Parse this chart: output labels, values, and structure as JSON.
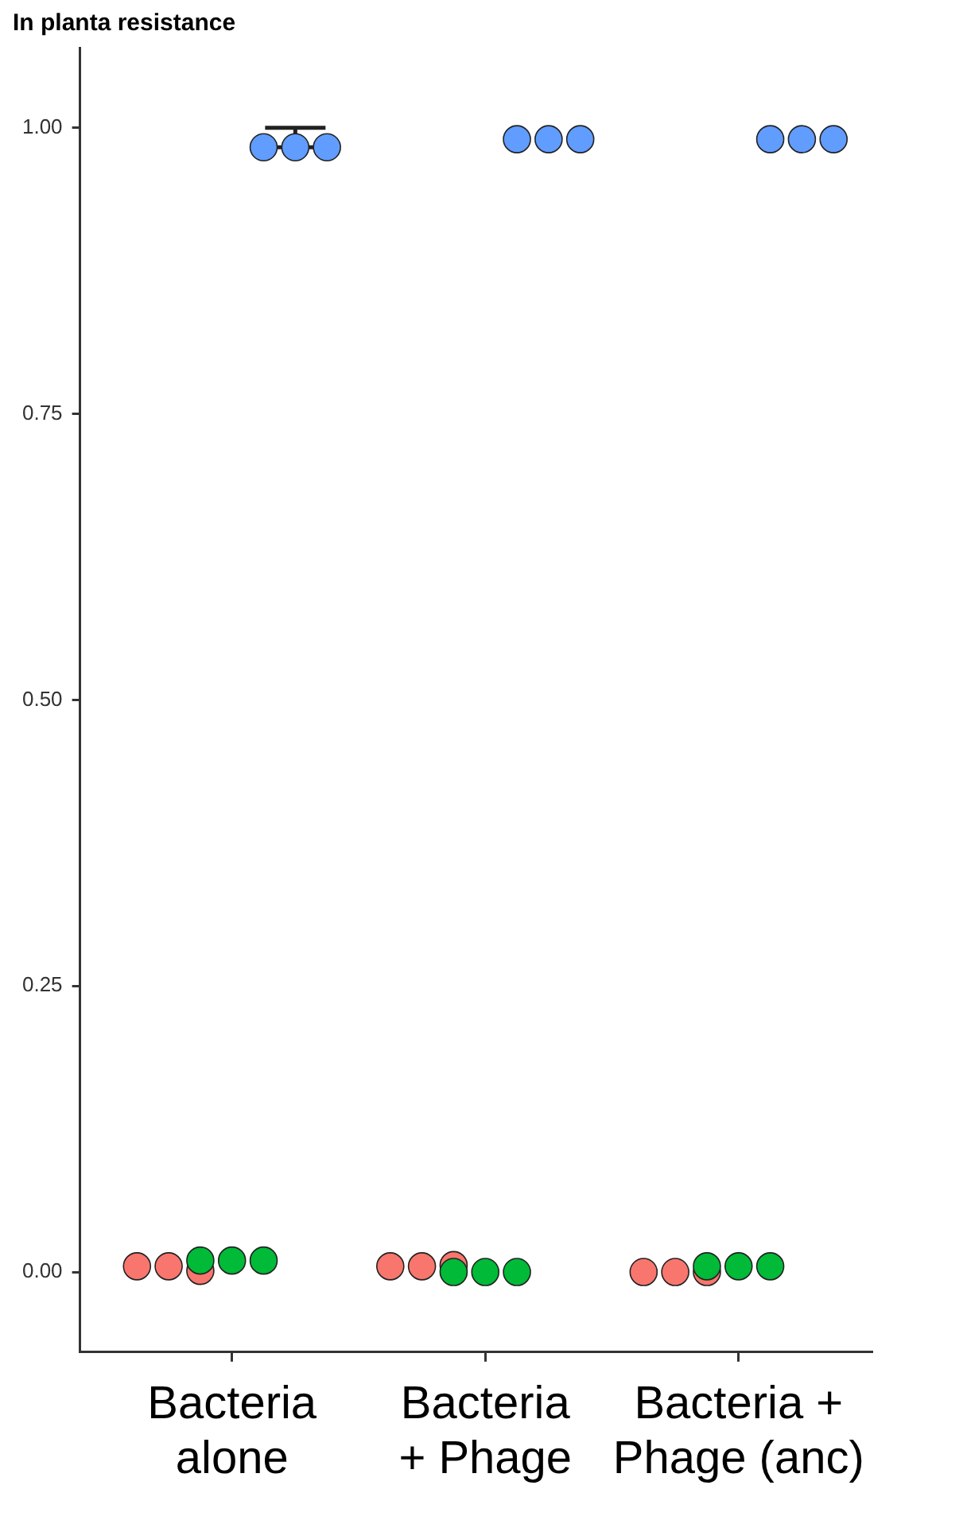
{
  "chart_data": {
    "type": "scatter",
    "title": "In planta resistance",
    "categories": [
      null,
      null,
      null,
      "Bacteria\nalone",
      null,
      null,
      null,
      null,
      null,
      null,
      null,
      "Bacteria\n+ Phage",
      null,
      null,
      null,
      null,
      null,
      null,
      null,
      "Bacteria +\nPhage (anc)",
      null,
      null,
      null,
      null
    ],
    "series": [
      {
        "color": "#f8766d",
        "values": [
          0.005,
          0.005,
          0.001,
          null,
          null,
          null,
          null,
          null,
          0.005,
          0.005,
          0.006,
          null,
          null,
          null,
          null,
          null,
          0.0,
          0.0,
          0.0,
          null,
          null,
          null,
          null,
          null
        ]
      },
      {
        "color": "#00ba38",
        "values": [
          null,
          null,
          0.01,
          0.01,
          0.01,
          null,
          null,
          null,
          null,
          null,
          0.0,
          0.0,
          0.0,
          null,
          null,
          null,
          null,
          null,
          0.005,
          0.005,
          0.005,
          null,
          null,
          null
        ]
      },
      {
        "color": "#619cff",
        "values": [
          null,
          null,
          null,
          null,
          0.983,
          0.983,
          0.983,
          null,
          null,
          null,
          null,
          null,
          0.99,
          0.99,
          0.99,
          null,
          null,
          null,
          null,
          null,
          0.99,
          0.99,
          0.99,
          null
        ],
        "errors": [
          null,
          null,
          null,
          null,
          null,
          [
            0.983,
            1.0
          ],
          null,
          null,
          null,
          null,
          null,
          null,
          null,
          null,
          null,
          null,
          null,
          null,
          null,
          null,
          null,
          null,
          null,
          null
        ]
      }
    ],
    "ylim": [
      -0.07,
      1.07
    ],
    "yticks": [
      {
        "value": 0,
        "label": "0.00"
      },
      {
        "value": 0.25,
        "label": "0.25"
      },
      {
        "value": 0.5,
        "label": "0.50"
      },
      {
        "value": 0.75,
        "label": "0.75"
      },
      {
        "value": 1,
        "label": "1.00"
      }
    ],
    "grid": false,
    "legend": false,
    "marker": "circle"
  }
}
